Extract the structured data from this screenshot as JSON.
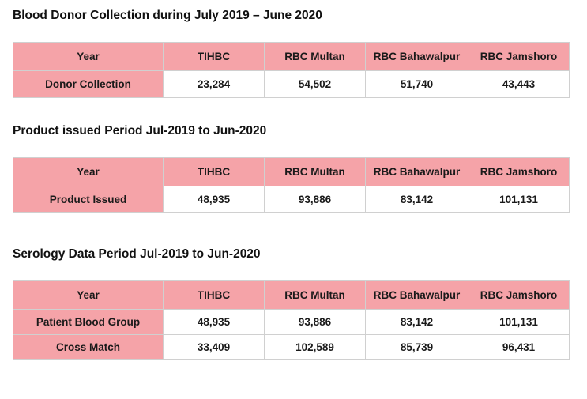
{
  "sections": [
    {
      "title": "Blood Donor Collection during July 2019 – June 2020",
      "headers": [
        "Year",
        "TIHBC",
        "RBC Multan",
        "RBC Bahawalpur",
        "RBC Jamshoro"
      ],
      "rows": [
        {
          "label": "Donor Collection",
          "values": [
            "23,284",
            "54,502",
            "51,740",
            "43,443"
          ]
        }
      ]
    },
    {
      "title": "Product issued Period Jul-2019 to Jun-2020",
      "headers": [
        "Year",
        "TIHBC",
        "RBC Multan",
        "RBC Bahawalpur",
        "RBC Jamshoro"
      ],
      "rows": [
        {
          "label": "Product Issued",
          "values": [
            "48,935",
            "93,886",
            "83,142",
            "101,131"
          ]
        }
      ]
    },
    {
      "title": "Serology Data Period Jul-2019 to Jun-2020",
      "headers": [
        "Year",
        "TIHBC",
        "RBC Multan",
        "RBC Bahawalpur",
        "RBC Jamshoro"
      ],
      "rows": [
        {
          "label": "Patient Blood Group",
          "values": [
            "48,935",
            "93,886",
            "83,142",
            "101,131"
          ]
        },
        {
          "label": "Cross Match",
          "values": [
            "33,409",
            "102,589",
            "85,739",
            "96,431"
          ]
        }
      ]
    }
  ],
  "colors": {
    "header_fill": "#f5a3a8",
    "border": "#d0d0d0"
  }
}
